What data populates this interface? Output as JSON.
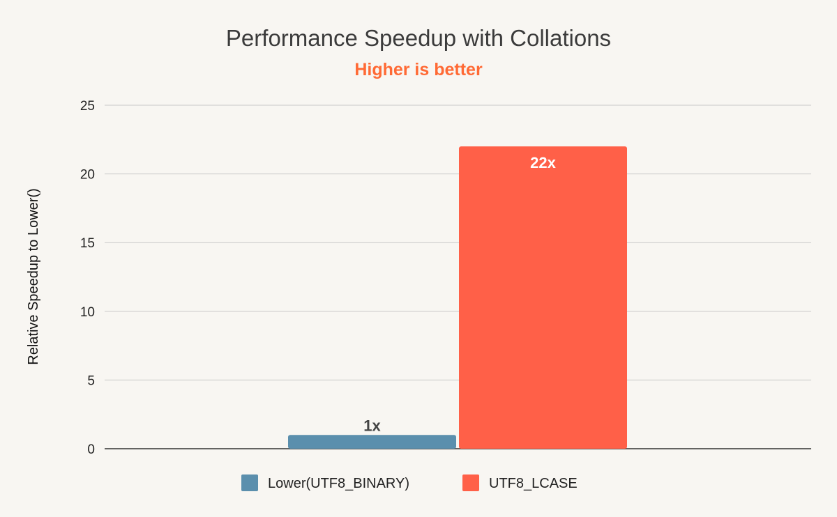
{
  "chart_data": {
    "type": "bar",
    "title": "Performance Speedup with Collations",
    "subtitle": "Higher is better",
    "xlabel": "",
    "ylabel": "Relative Speedup to Lower()",
    "ylim": [
      0,
      25
    ],
    "yticks": [
      0,
      5,
      10,
      15,
      20,
      25
    ],
    "grid": true,
    "legend_position": "bottom",
    "series": [
      {
        "name": "Lower(UTF8_BINARY)",
        "value": 1,
        "label": "1x",
        "color": "#5b8fad"
      },
      {
        "name": "UTF8_LCASE",
        "value": 22,
        "label": "22x",
        "color": "#ff6048"
      }
    ]
  },
  "colors": {
    "background": "#f8f6f2",
    "subtitle": "#ff6a35",
    "grid": "#c8c8c8",
    "label_inside": "#ffffff",
    "label_outside": "#444444"
  }
}
